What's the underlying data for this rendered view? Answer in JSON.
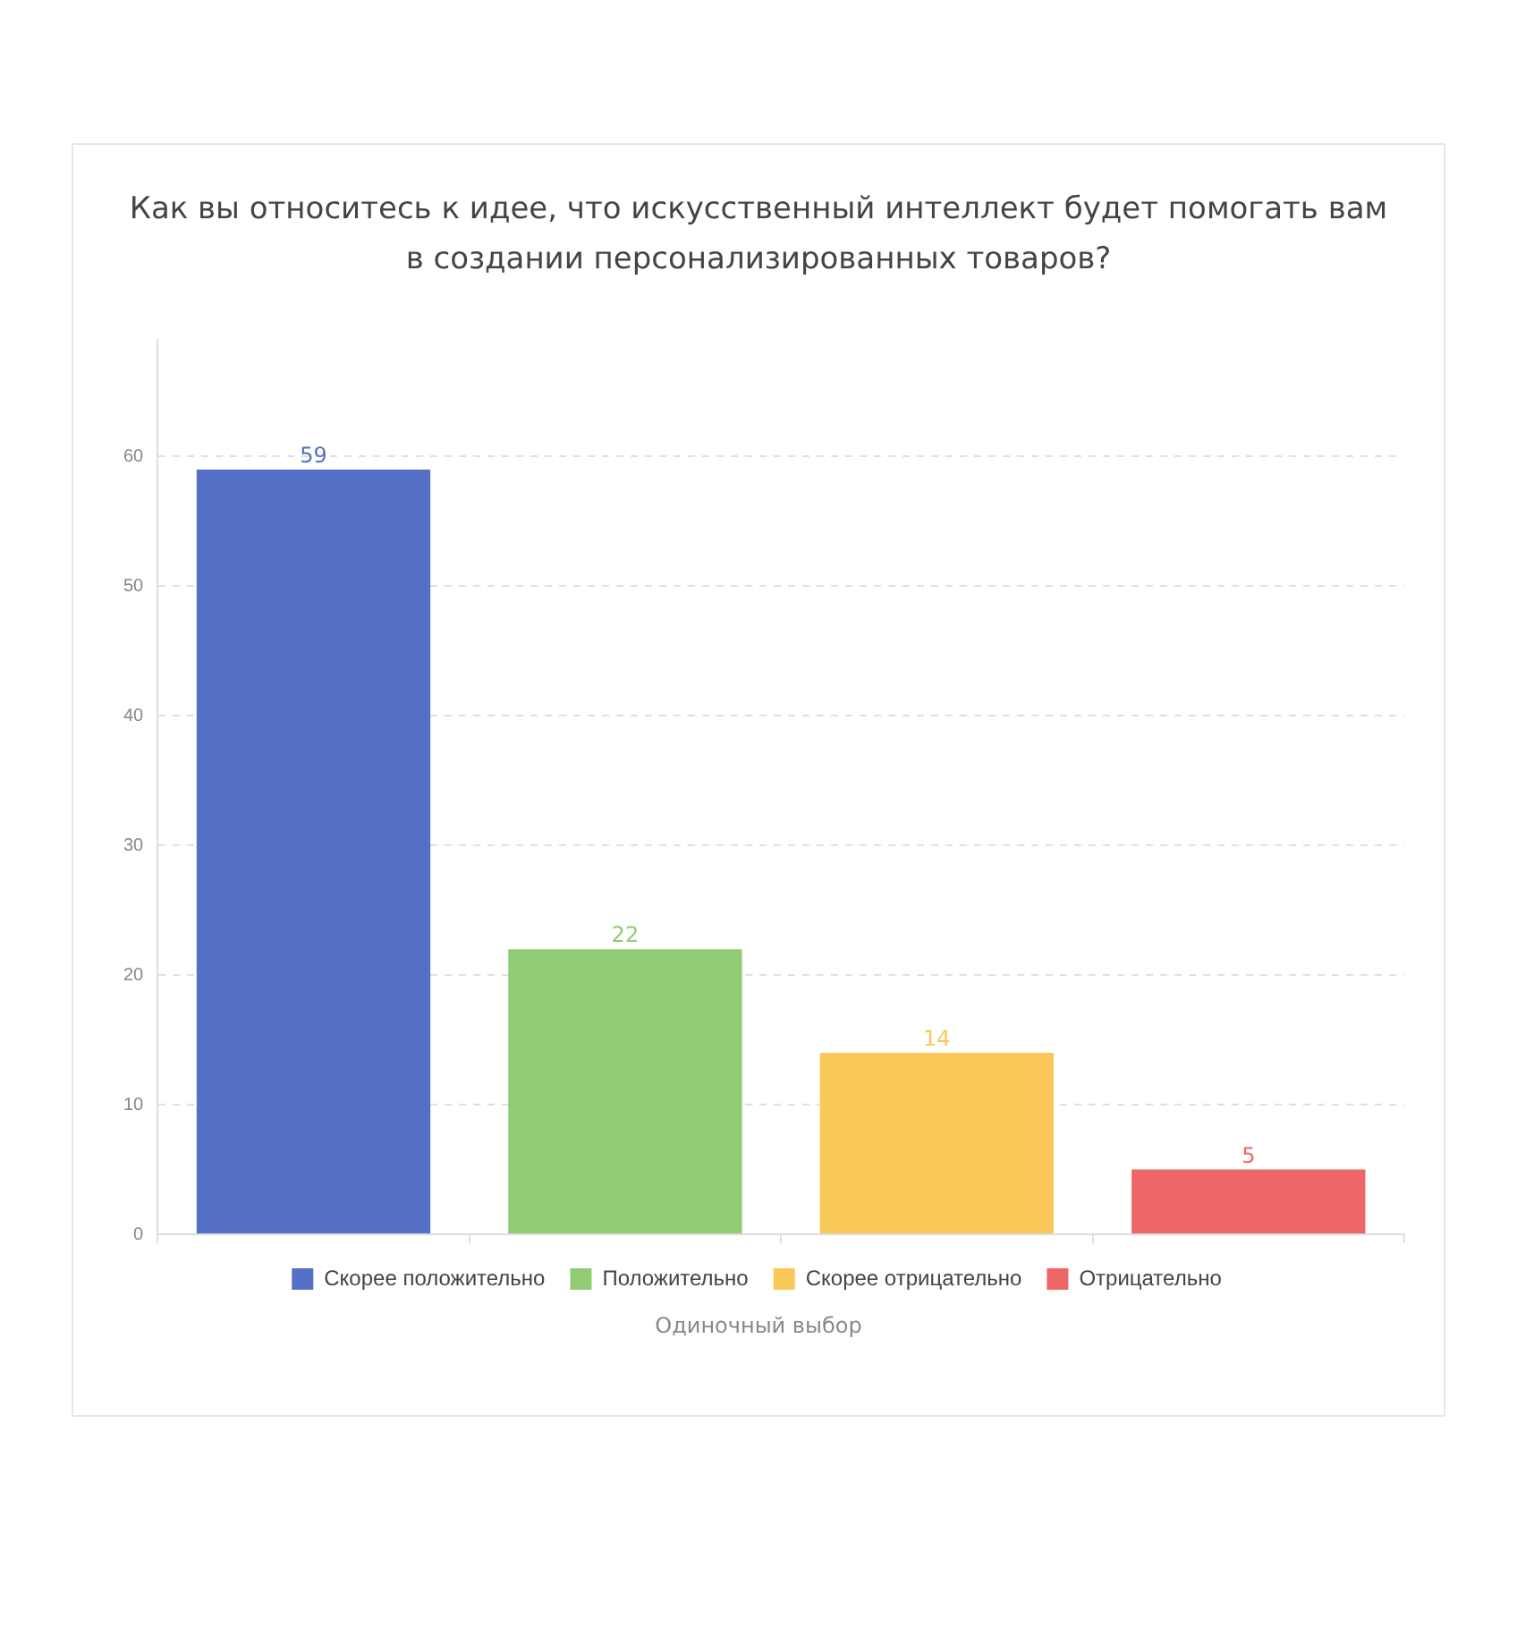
{
  "chart_data": {
    "type": "bar",
    "title": "Как вы относитесь к идее, что искусственный интеллект будет помогать вам в создании персонализированных товаров?",
    "categories": [
      null,
      null,
      null,
      null
    ],
    "series": [
      {
        "name": "Скорее положительно",
        "color": "#5470c6",
        "values": [
          59,
          null,
          null,
          null
        ]
      },
      {
        "name": "Положительно",
        "color": "#91cc75",
        "values": [
          null,
          22,
          null,
          null
        ]
      },
      {
        "name": "Скорее отрицательно",
        "color": "#fac858",
        "values": [
          null,
          null,
          14,
          null
        ]
      },
      {
        "name": "Отрицательно",
        "color": "#ee6666",
        "values": [
          null,
          null,
          null,
          5
        ]
      }
    ],
    "ylim": [
      0,
      69
    ],
    "yticks": [
      0,
      10,
      20,
      30,
      40,
      50,
      60
    ],
    "grid": "y",
    "legend": "bottom",
    "tick_labels": "y",
    "data_labels": true,
    "annotations": [
      "Одиночный выбор"
    ]
  }
}
